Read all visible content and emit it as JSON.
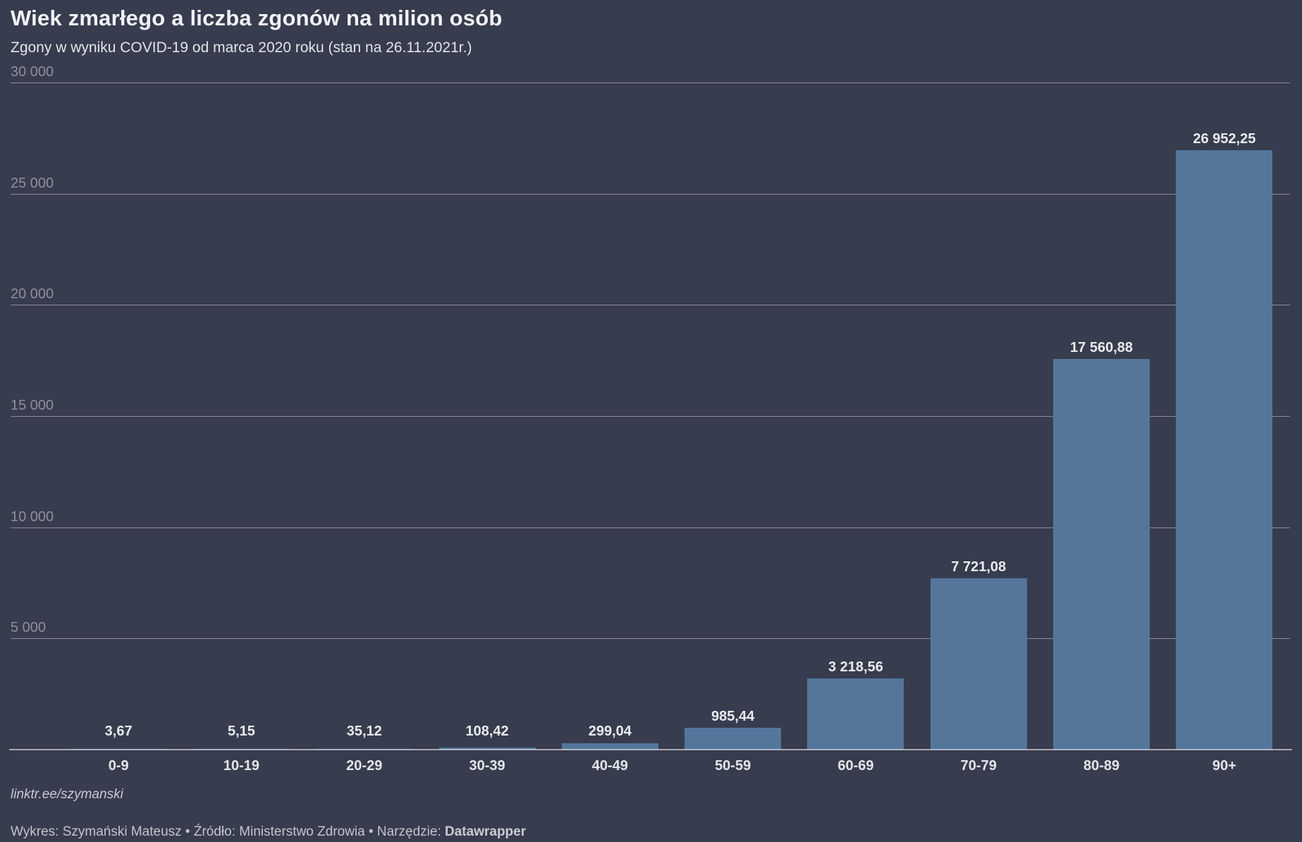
{
  "header": {
    "title": "Wiek zmarłego a liczba zgonów na milion osób",
    "subtitle": "Zgony w wyniku COVID-19 od marca 2020 roku (stan na 26.11.2021r.)"
  },
  "chart_data": {
    "type": "bar",
    "title": "Wiek zmarłego a liczba zgonów na milion osób",
    "subtitle": "Zgony w wyniku COVID-19 od marca 2020 roku (stan na 26.11.2021r.)",
    "xlabel": "",
    "ylabel": "",
    "categories": [
      "0-9",
      "10-19",
      "20-29",
      "30-39",
      "40-49",
      "50-59",
      "60-69",
      "70-79",
      "80-89",
      "90+"
    ],
    "values": [
      3.67,
      5.15,
      35.12,
      108.42,
      299.04,
      985.44,
      3218.56,
      7721.08,
      17560.88,
      26952.25
    ],
    "value_labels": [
      "3,67",
      "5,15",
      "35,12",
      "108,42",
      "299,04",
      "985,44",
      "3 218,56",
      "7 721,08",
      "17 560,88",
      "26 952,25"
    ],
    "ylim": [
      0,
      30000
    ],
    "yticks": [
      {
        "value": 30000,
        "label": "30 000"
      },
      {
        "value": 25000,
        "label": "25 000"
      },
      {
        "value": 20000,
        "label": "20 000"
      },
      {
        "value": 15000,
        "label": "15 000"
      },
      {
        "value": 10000,
        "label": "10 000"
      },
      {
        "value": 5000,
        "label": "5 000"
      }
    ],
    "grid": true,
    "legend": "none",
    "bar_color": "#54769a"
  },
  "colors": {
    "background": "#373c4e",
    "bar": "#54769a",
    "title_text": "#f0f2f5",
    "subtitle_text": "#e3e5e9",
    "value_label_text": "#e9ebee",
    "category_label_text": "#e3e6eb",
    "ytick_text": "#8d919b"
  },
  "footer": {
    "byline": "linktr.ee/szymanski",
    "attribution_prefix": "Wykres: Szymański Mateusz • Źródło: Ministerstwo Zdrowia • Narzędzie: ",
    "attribution_tool": "Datawrapper"
  }
}
